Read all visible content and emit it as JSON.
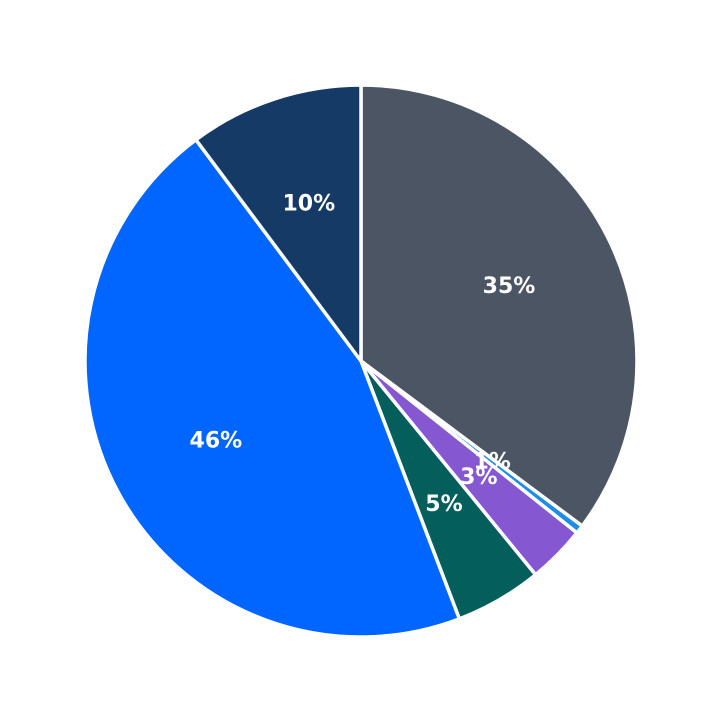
{
  "chart_data": {
    "type": "pie",
    "start_angle": "12 o'clock",
    "direction": "clockwise",
    "slice_border_color": "#ffffff",
    "slices": [
      {
        "value": 35.2,
        "label": "35%",
        "color": "#4b5563"
      },
      {
        "value": 0.5,
        "label": "1%",
        "color": "#1f8ce6"
      },
      {
        "value": 3.4,
        "label": "3%",
        "color": "#8557d0"
      },
      {
        "value": 5.1,
        "label": "5%",
        "color": "#045e5c"
      },
      {
        "value": 45.6,
        "label": "46%",
        "color": "#0166ff"
      },
      {
        "value": 10.2,
        "label": "10%",
        "color": "#153a66"
      }
    ]
  }
}
